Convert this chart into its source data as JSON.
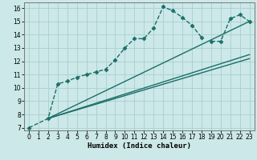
{
  "xlabel": "Humidex (Indice chaleur)",
  "bg_color": "#cce8e8",
  "grid_color": "#aacece",
  "line_color": "#1a6e6a",
  "xlim": [
    -0.5,
    23.5
  ],
  "ylim": [
    6.8,
    16.4
  ],
  "xticks": [
    0,
    1,
    2,
    3,
    4,
    5,
    6,
    7,
    8,
    9,
    10,
    11,
    12,
    13,
    14,
    15,
    16,
    17,
    18,
    19,
    20,
    21,
    22,
    23
  ],
  "yticks": [
    7,
    8,
    9,
    10,
    11,
    12,
    13,
    14,
    15,
    16
  ],
  "figsize": [
    3.2,
    2.0
  ],
  "dpi": 100,
  "lines": [
    {
      "x": [
        0,
        2,
        3,
        4,
        5,
        6,
        7,
        8,
        9,
        10,
        11,
        12,
        13,
        14,
        15,
        16,
        17,
        18
      ],
      "y": [
        7.0,
        7.7,
        10.3,
        10.5,
        10.8,
        11.0,
        11.2,
        11.4,
        12.1,
        13.0,
        13.7,
        13.7,
        14.5,
        16.1,
        15.8,
        15.3,
        14.7,
        13.8
      ],
      "marker": "D",
      "markersize": 2.5,
      "linewidth": 1.0,
      "linestyle": "--"
    },
    {
      "x": [
        19,
        20,
        21,
        22,
        23
      ],
      "y": [
        13.5,
        13.5,
        15.2,
        15.5,
        15.0
      ],
      "marker": "D",
      "markersize": 2.5,
      "linewidth": 1.0,
      "linestyle": "--"
    },
    {
      "x": [
        2,
        23
      ],
      "y": [
        7.7,
        12.2
      ],
      "marker": null,
      "markersize": 0,
      "linewidth": 1.0,
      "linestyle": "-"
    },
    {
      "x": [
        2,
        23
      ],
      "y": [
        7.7,
        12.5
      ],
      "marker": null,
      "markersize": 0,
      "linewidth": 1.0,
      "linestyle": "-"
    },
    {
      "x": [
        2,
        23
      ],
      "y": [
        7.7,
        15.0
      ],
      "marker": null,
      "markersize": 0,
      "linewidth": 1.0,
      "linestyle": "-"
    }
  ]
}
